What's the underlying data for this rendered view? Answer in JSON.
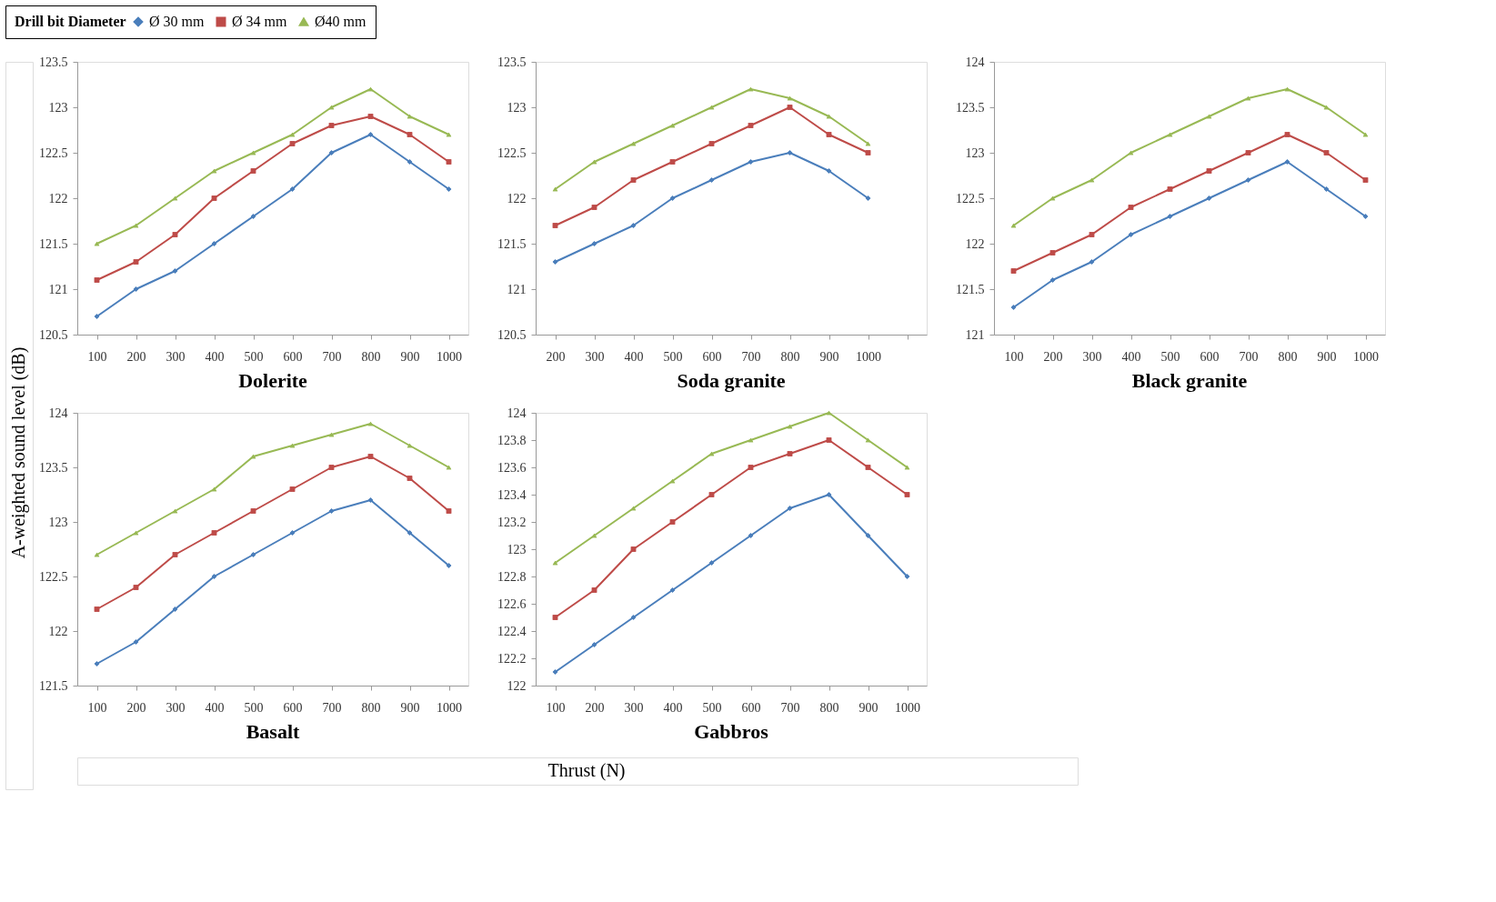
{
  "chart_data": [
    {
      "type": "line",
      "title": "Dolerite",
      "legend": "top",
      "legend_title": "Drill bit Diameter",
      "ylabel": "A-weighted sound level (dB)",
      "xlabel": "Thrust (N)",
      "grid": false,
      "categories": [
        "100",
        "200",
        "300",
        "400",
        "500",
        "600",
        "700",
        "800",
        "900",
        "1000"
      ],
      "ylim": [
        120.5,
        123.5
      ],
      "yticks": [
        120.5,
        121,
        121.5,
        122,
        122.5,
        123,
        123.5
      ],
      "series": [
        {
          "name": "Ø 30 mm",
          "color": "#4a7ebb",
          "marker": "diamond",
          "values": [
            120.7,
            121.0,
            121.2,
            121.5,
            121.8,
            122.1,
            122.5,
            122.7,
            122.4,
            122.1
          ]
        },
        {
          "name": "Ø 34 mm",
          "color": "#be4b48",
          "marker": "square",
          "values": [
            121.1,
            121.3,
            121.6,
            122.0,
            122.3,
            122.6,
            122.8,
            122.9,
            122.7,
            122.4
          ]
        },
        {
          "name": "Ø40 mm",
          "color": "#98b954",
          "marker": "triangle",
          "values": [
            121.5,
            121.7,
            122.0,
            122.3,
            122.5,
            122.7,
            123.0,
            123.2,
            122.9,
            122.7
          ]
        }
      ]
    },
    {
      "type": "line",
      "title": "Soda granite",
      "grid": false,
      "categories": [
        "200",
        "300",
        "400",
        "500",
        "600",
        "700",
        "800",
        "900",
        "1000",
        null
      ],
      "ylim": [
        120.5,
        123.5
      ],
      "yticks": [
        120.5,
        121,
        121.5,
        122,
        122.5,
        123,
        123.5
      ],
      "series": [
        {
          "name": "Ø 30 mm",
          "color": "#4a7ebb",
          "marker": "diamond",
          "values": [
            121.3,
            121.5,
            121.7,
            122.0,
            122.2,
            122.4,
            122.5,
            122.3,
            122.0,
            null
          ]
        },
        {
          "name": "Ø 34 mm",
          "color": "#be4b48",
          "marker": "square",
          "values": [
            121.7,
            121.9,
            122.2,
            122.4,
            122.6,
            122.8,
            123.0,
            122.7,
            122.5,
            null
          ]
        },
        {
          "name": "Ø40 mm",
          "color": "#98b954",
          "marker": "triangle",
          "values": [
            122.1,
            122.4,
            122.6,
            122.8,
            123.0,
            123.2,
            123.1,
            122.9,
            122.6,
            null
          ]
        }
      ]
    },
    {
      "type": "line",
      "title": "Black granite",
      "grid": false,
      "categories": [
        "100",
        "200",
        "300",
        "400",
        "500",
        "600",
        "700",
        "800",
        "900",
        "1000"
      ],
      "ylim": [
        121,
        124
      ],
      "yticks": [
        121,
        121.5,
        122,
        122.5,
        123,
        123.5,
        124
      ],
      "series": [
        {
          "name": "Ø 30 mm",
          "color": "#4a7ebb",
          "marker": "diamond",
          "values": [
            121.3,
            121.6,
            121.8,
            122.1,
            122.3,
            122.5,
            122.7,
            122.9,
            122.6,
            122.3
          ]
        },
        {
          "name": "Ø 34 mm",
          "color": "#be4b48",
          "marker": "square",
          "values": [
            121.7,
            121.9,
            122.1,
            122.4,
            122.6,
            122.8,
            123.0,
            123.2,
            123.0,
            122.7
          ]
        },
        {
          "name": "Ø40 mm",
          "color": "#98b954",
          "marker": "triangle",
          "values": [
            122.2,
            122.5,
            122.7,
            123.0,
            123.2,
            123.4,
            123.6,
            123.7,
            123.5,
            123.2
          ]
        }
      ]
    },
    {
      "type": "line",
      "title": "Basalt",
      "grid": false,
      "categories": [
        "100",
        "200",
        "300",
        "400",
        "500",
        "600",
        "700",
        "800",
        "900",
        "1000"
      ],
      "ylim": [
        121.5,
        124
      ],
      "yticks": [
        121.5,
        122,
        122.5,
        123,
        123.5,
        124
      ],
      "series": [
        {
          "name": "Ø 30 mm",
          "color": "#4a7ebb",
          "marker": "diamond",
          "values": [
            121.7,
            121.9,
            122.2,
            122.5,
            122.7,
            122.9,
            123.1,
            123.2,
            122.9,
            122.6
          ]
        },
        {
          "name": "Ø 34 mm",
          "color": "#be4b48",
          "marker": "square",
          "values": [
            122.2,
            122.4,
            122.7,
            122.9,
            123.1,
            123.3,
            123.5,
            123.6,
            123.4,
            123.1
          ]
        },
        {
          "name": "Ø40 mm",
          "color": "#98b954",
          "marker": "triangle",
          "values": [
            122.7,
            122.9,
            123.1,
            123.3,
            123.6,
            123.7,
            123.8,
            123.9,
            123.7,
            123.5
          ]
        }
      ]
    },
    {
      "type": "line",
      "title": "Gabbros",
      "grid": false,
      "categories": [
        "100",
        "200",
        "300",
        "400",
        "500",
        "600",
        "700",
        "800",
        "900",
        "1000"
      ],
      "ylim": [
        122,
        124
      ],
      "yticks": [
        122,
        122.2,
        122.4,
        122.6,
        122.8,
        123,
        123.2,
        123.4,
        123.6,
        123.8,
        124
      ],
      "series": [
        {
          "name": "Ø 30 mm",
          "color": "#4a7ebb",
          "marker": "diamond",
          "values": [
            122.1,
            122.3,
            122.5,
            122.7,
            122.9,
            123.1,
            123.3,
            123.4,
            123.1,
            122.8
          ]
        },
        {
          "name": "Ø 34 mm",
          "color": "#be4b48",
          "marker": "square",
          "values": [
            122.5,
            122.7,
            123.0,
            123.2,
            123.4,
            123.6,
            123.7,
            123.8,
            123.6,
            123.4
          ]
        },
        {
          "name": "Ø40 mm",
          "color": "#98b954",
          "marker": "triangle",
          "values": [
            122.9,
            123.1,
            123.3,
            123.5,
            123.7,
            123.8,
            123.9,
            124.0,
            123.8,
            123.6
          ]
        }
      ]
    }
  ]
}
